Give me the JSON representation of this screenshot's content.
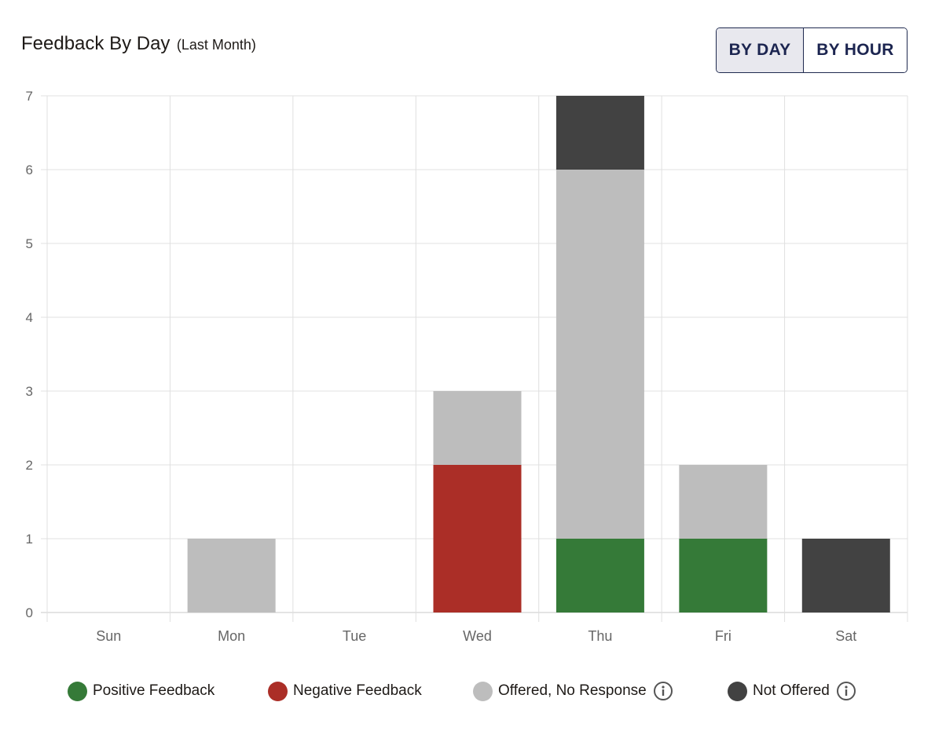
{
  "header": {
    "title": "Feedback By Day",
    "subtitle": "(Last Month)"
  },
  "toggle": {
    "by_day_label": "BY DAY",
    "by_hour_label": "BY HOUR",
    "selected": "BY DAY"
  },
  "colors": {
    "positive": "#357a38",
    "negative": "#ab2e27",
    "offered": "#bdbdbd",
    "not_offered": "#424242",
    "grid": "#e0e0e0",
    "tick_text": "#666666"
  },
  "chart_data": {
    "type": "bar",
    "stacked": true,
    "title": "Feedback By Day (Last Month)",
    "xlabel": "",
    "ylabel": "",
    "ylim": [
      0,
      7
    ],
    "yticks": [
      "0",
      "1",
      "2",
      "3",
      "4",
      "5",
      "6",
      "7"
    ],
    "categories": [
      "Sun",
      "Mon",
      "Tue",
      "Wed",
      "Thu",
      "Fri",
      "Sat"
    ],
    "series": [
      {
        "key": "positive",
        "name": "Positive Feedback",
        "values": [
          0,
          0,
          0,
          0,
          1,
          1,
          0
        ]
      },
      {
        "key": "negative",
        "name": "Negative Feedback",
        "values": [
          0,
          0,
          0,
          2,
          0,
          0,
          0
        ]
      },
      {
        "key": "offered",
        "name": "Offered, No Response",
        "values": [
          0,
          1,
          0,
          1,
          5,
          1,
          0
        ]
      },
      {
        "key": "not_offered",
        "name": "Not Offered",
        "values": [
          0,
          0,
          0,
          0,
          1,
          0,
          1
        ]
      }
    ],
    "legend_position": "bottom"
  },
  "legend": {
    "items": [
      {
        "key": "positive",
        "label": "Positive Feedback",
        "info_icon": false
      },
      {
        "key": "negative",
        "label": "Negative Feedback",
        "info_icon": false
      },
      {
        "key": "offered",
        "label": "Offered, No Response",
        "info_icon": true
      },
      {
        "key": "not_offered",
        "label": "Not Offered",
        "info_icon": true
      }
    ]
  }
}
